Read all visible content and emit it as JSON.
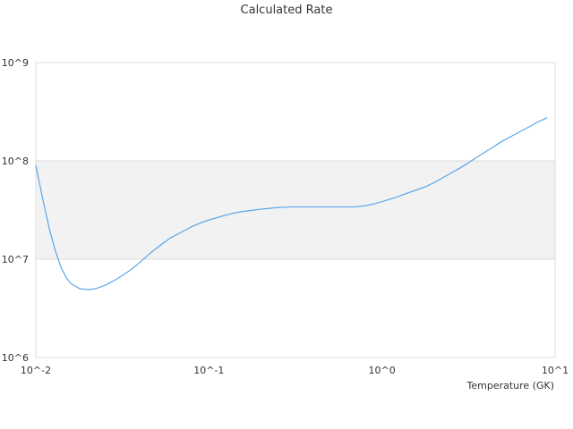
{
  "chart_data": {
    "type": "line",
    "title": "Calculated Rate",
    "xlabel": "Temperature (GK)",
    "ylabel": "",
    "x_scale": "log",
    "y_scale": "log",
    "xlim": [
      0.01,
      10
    ],
    "ylim": [
      1000000,
      1000000000
    ],
    "x_tick_labels": [
      "10^-2",
      "10^-1",
      "10^0",
      "10^1"
    ],
    "y_tick_labels": [
      "10^6",
      "10^7",
      "10^8",
      "10^9"
    ],
    "grid": true,
    "alternate_band": {
      "from": 10000000,
      "to": 100000000,
      "color": "#f2f2f2"
    },
    "line_color": "#4a9fea",
    "series": [
      {
        "x": [
          0.01,
          0.011,
          0.012,
          0.013,
          0.014,
          0.015,
          0.016,
          0.018,
          0.02,
          0.022,
          0.025,
          0.028,
          0.032,
          0.036,
          0.04,
          0.045,
          0.05,
          0.06,
          0.07,
          0.08,
          0.09,
          0.1,
          0.12,
          0.14,
          0.16,
          0.18,
          0.2,
          0.25,
          0.3,
          0.35,
          0.4,
          0.5,
          0.6,
          0.7,
          0.8,
          0.9,
          1.0,
          1.2,
          1.4,
          1.6,
          1.8,
          2.0,
          2.5,
          3.0,
          3.5,
          4.0,
          5.0,
          6.0,
          7.0,
          8.0,
          9.0
        ],
        "y": [
          90000000,
          40000000,
          20000000,
          12000000,
          8200000,
          6500000,
          5600000,
          5000000,
          4900000,
          5000000,
          5400000,
          6000000,
          6900000,
          8000000,
          9300000,
          11200000,
          13000000,
          16500000,
          19000000,
          21500000,
          23500000,
          25000000,
          27500000,
          29500000,
          30700000,
          31500000,
          32200000,
          33500000,
          34000000,
          34000000,
          34000000,
          34000000,
          34000000,
          34000000,
          35000000,
          36500000,
          38500000,
          42500000,
          47000000,
          51000000,
          55000000,
          60000000,
          75000000,
          90000000,
          108000000,
          125000000,
          160000000,
          190000000,
          220000000,
          250000000,
          275000000
        ]
      }
    ]
  }
}
